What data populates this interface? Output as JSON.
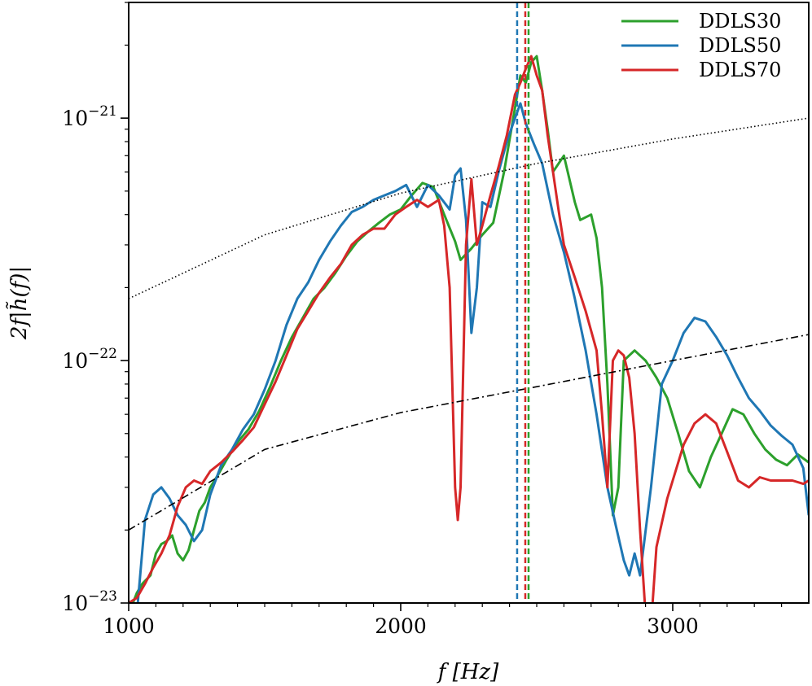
{
  "chart_data": {
    "type": "line",
    "title": "",
    "xlabel": "f [Hz]",
    "ylabel": "2f|h̃(f)|",
    "xlim": [
      1000,
      3500
    ],
    "ylim": [
      1e-23,
      3e-21
    ],
    "yscale": "log",
    "grid": false,
    "legend_position": "top-right",
    "x_ticks": [
      1000,
      2000,
      3000
    ],
    "x_tick_labels": [
      "1000",
      "2000",
      "3000"
    ],
    "y_ticks": [
      {
        "value": 1e-23,
        "base": "10",
        "exp": "−23"
      },
      {
        "value": 1e-22,
        "base": "10",
        "exp": "−22"
      },
      {
        "value": 1e-21,
        "base": "10",
        "exp": "−21"
      }
    ],
    "series": [
      {
        "name": "DDLS30",
        "color": "#2ca02c",
        "style": "solid",
        "x": [
          1000,
          1030,
          1050,
          1080,
          1100,
          1120,
          1140,
          1160,
          1180,
          1200,
          1220,
          1240,
          1260,
          1280,
          1300,
          1330,
          1360,
          1400,
          1440,
          1480,
          1520,
          1560,
          1600,
          1640,
          1680,
          1720,
          1760,
          1800,
          1840,
          1880,
          1920,
          1960,
          2000,
          2040,
          2080,
          2120,
          2160,
          2200,
          2220,
          2260,
          2300,
          2340,
          2380,
          2420,
          2440,
          2460,
          2480,
          2500,
          2520,
          2540,
          2560,
          2600,
          2640,
          2660,
          2700,
          2720,
          2740,
          2760,
          2780,
          2800,
          2820,
          2840,
          2860,
          2900,
          2940,
          2980,
          3020,
          3060,
          3100,
          3140,
          3180,
          3220,
          3260,
          3300,
          3340,
          3380,
          3420,
          3460,
          3500
        ],
        "y": [
          9e-24,
          1.1e-23,
          1.2e-23,
          1.3e-23,
          1.6e-23,
          1.75e-23,
          1.8e-23,
          1.9e-23,
          1.6e-23,
          1.5e-23,
          1.65e-23,
          2e-23,
          2.4e-23,
          2.6e-23,
          3e-23,
          3.4e-23,
          3.9e-23,
          4.6e-23,
          5.2e-23,
          6.2e-23,
          7.8e-23,
          1e-22,
          1.25e-22,
          1.5e-22,
          1.8e-22,
          2e-22,
          2.3e-22,
          2.7e-22,
          3.1e-22,
          3.4e-22,
          3.7e-22,
          4e-22,
          4.2e-22,
          4.8e-22,
          5.4e-22,
          5.2e-22,
          4e-22,
          3.1e-22,
          2.6e-22,
          2.9e-22,
          3.3e-22,
          3.7e-22,
          6e-22,
          1.1e-21,
          1.5e-21,
          1.4e-21,
          1.7e-21,
          1.8e-21,
          1.3e-21,
          9e-22,
          6e-22,
          7e-22,
          4.5e-22,
          3.8e-22,
          4e-22,
          3.2e-22,
          2e-22,
          8e-23,
          2.3e-23,
          3e-23,
          1e-22,
          1.05e-22,
          1.1e-22,
          1e-22,
          8.5e-23,
          7e-23,
          5e-23,
          3.5e-23,
          3e-23,
          4e-23,
          5e-23,
          6.3e-23,
          6e-23,
          5e-23,
          4.3e-23,
          3.9e-23,
          3.7e-23,
          4.1e-23,
          3.8e-23
        ]
      },
      {
        "name": "DDLS50",
        "color": "#1f77b4",
        "style": "solid",
        "x": [
          1000,
          1030,
          1060,
          1090,
          1120,
          1150,
          1180,
          1210,
          1240,
          1270,
          1300,
          1340,
          1380,
          1420,
          1460,
          1500,
          1540,
          1580,
          1620,
          1660,
          1700,
          1740,
          1780,
          1820,
          1860,
          1900,
          1940,
          1980,
          2020,
          2060,
          2100,
          2140,
          2180,
          2200,
          2220,
          2240,
          2260,
          2280,
          2300,
          2330,
          2360,
          2390,
          2420,
          2440,
          2460,
          2490,
          2520,
          2560,
          2600,
          2640,
          2680,
          2720,
          2760,
          2790,
          2820,
          2840,
          2860,
          2880,
          2920,
          2960,
          3000,
          3040,
          3080,
          3120,
          3160,
          3200,
          3240,
          3280,
          3320,
          3360,
          3400,
          3440,
          3480,
          3500
        ],
        "y": [
          8e-24,
          9e-24,
          2.2e-23,
          2.8e-23,
          3e-23,
          2.7e-23,
          2.3e-23,
          2.1e-23,
          1.8e-23,
          2e-23,
          2.8e-23,
          3.7e-23,
          4.3e-23,
          5.2e-23,
          6e-23,
          7.6e-23,
          1e-22,
          1.4e-22,
          1.8e-22,
          2.1e-22,
          2.6e-22,
          3.1e-22,
          3.6e-22,
          4.1e-22,
          4.3e-22,
          4.6e-22,
          4.8e-22,
          5e-22,
          5.3e-22,
          4.3e-22,
          5.3e-22,
          4.8e-22,
          4.2e-22,
          5.8e-22,
          6.2e-22,
          3.8e-22,
          1.3e-22,
          2e-22,
          4.5e-22,
          4.3e-22,
          6e-22,
          8e-22,
          1e-21,
          1.15e-21,
          9.5e-22,
          7.8e-22,
          6.5e-22,
          4e-22,
          2.8e-22,
          1.8e-22,
          1.1e-22,
          6e-23,
          3e-23,
          2.1e-23,
          1.5e-23,
          1.3e-23,
          1.6e-23,
          1.3e-23,
          3e-23,
          8e-23,
          1e-22,
          1.3e-22,
          1.5e-22,
          1.45e-22,
          1.25e-22,
          1.05e-22,
          8.5e-23,
          7e-23,
          6.2e-23,
          5.4e-23,
          4.9e-23,
          4.5e-23,
          3.6e-23,
          2.3e-23
        ]
      },
      {
        "name": "DDLS70",
        "color": "#d62728",
        "style": "solid",
        "x": [
          1000,
          1030,
          1060,
          1090,
          1120,
          1150,
          1180,
          1210,
          1240,
          1270,
          1300,
          1340,
          1380,
          1420,
          1460,
          1500,
          1540,
          1580,
          1620,
          1660,
          1700,
          1740,
          1780,
          1820,
          1860,
          1900,
          1940,
          1980,
          2020,
          2060,
          2100,
          2140,
          2160,
          2180,
          2200,
          2210,
          2220,
          2240,
          2260,
          2280,
          2300,
          2330,
          2360,
          2390,
          2420,
          2440,
          2460,
          2480,
          2500,
          2520,
          2540,
          2560,
          2580,
          2600,
          2640,
          2680,
          2720,
          2740,
          2760,
          2780,
          2800,
          2820,
          2840,
          2860,
          2880,
          2900,
          2920,
          2940,
          2980,
          3000,
          3040,
          3080,
          3120,
          3160,
          3200,
          3240,
          3280,
          3320,
          3360,
          3400,
          3440,
          3480,
          3500
        ],
        "y": [
          1e-23,
          1.05e-23,
          1.2e-23,
          1.4e-23,
          1.6e-23,
          1.9e-23,
          2.5e-23,
          3e-23,
          3.2e-23,
          3.1e-23,
          3.5e-23,
          3.8e-23,
          4.2e-23,
          4.7e-23,
          5.3e-23,
          6.6e-23,
          8.2e-23,
          1.05e-22,
          1.35e-22,
          1.6e-22,
          1.9e-22,
          2.2e-22,
          2.5e-22,
          3e-22,
          3.3e-22,
          3.5e-22,
          3.5e-22,
          4e-22,
          4.3e-22,
          4.6e-22,
          4.3e-22,
          4.6e-22,
          3.6e-22,
          2e-22,
          3e-23,
          2.2e-23,
          3e-23,
          3e-22,
          5.6e-22,
          3e-22,
          3.6e-22,
          4.8e-22,
          6.3e-22,
          8.5e-22,
          1.25e-21,
          1.4e-21,
          1.6e-21,
          1.8e-21,
          1.5e-21,
          1.3e-21,
          8.5e-22,
          6e-22,
          4.2e-22,
          3e-22,
          2.2e-22,
          1.6e-22,
          1.1e-22,
          6e-23,
          3e-23,
          1e-22,
          1.1e-22,
          1.05e-22,
          8.5e-23,
          5e-23,
          2e-23,
          9e-24,
          8e-24,
          1.7e-23,
          2.7e-23,
          3.2e-23,
          4.5e-23,
          5.5e-23,
          6e-23,
          5.5e-23,
          4.2e-23,
          3.2e-23,
          3e-23,
          3.3e-23,
          3.2e-23,
          3.2e-23,
          3.2e-23,
          3.1e-23,
          3.2e-23
        ]
      },
      {
        "name": "",
        "color": "#000000",
        "style": "dotted",
        "x": [
          1000,
          1500,
          2000,
          2500,
          3000,
          3500
        ],
        "y": [
          1.8e-22,
          3.3e-22,
          4.9e-22,
          6.5e-22,
          8.2e-22,
          1e-21
        ]
      },
      {
        "name": "",
        "color": "#000000",
        "style": "dashdot",
        "x": [
          1000,
          1500,
          2000,
          2500,
          3000,
          3500
        ],
        "y": [
          2e-23,
          4.3e-23,
          6.1e-23,
          7.8e-23,
          1e-22,
          1.28e-22
        ]
      }
    ],
    "vlines": [
      {
        "x": 2428,
        "color": "#1f77b4",
        "style": "dashed"
      },
      {
        "x": 2458,
        "color": "#d62728",
        "style": "dashed"
      },
      {
        "x": 2470,
        "color": "#2ca02c",
        "style": "dashed"
      }
    ]
  }
}
